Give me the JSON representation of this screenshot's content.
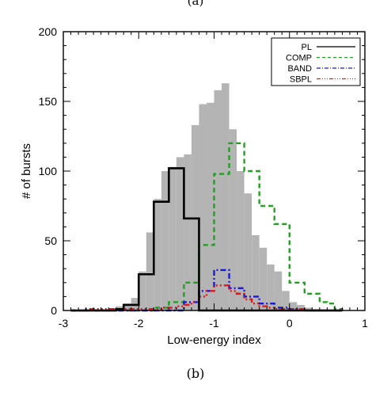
{
  "header": {
    "top_label": "(a)"
  },
  "caption": {
    "label": "(b)"
  },
  "chart_data": {
    "type": "histogram",
    "xlabel": "Low-energy index",
    "ylabel": "# of bursts",
    "xlim": [
      -3,
      1
    ],
    "ylim": [
      0,
      200
    ],
    "xticks": [
      "-3",
      "-2",
      "-1",
      "0",
      "1"
    ],
    "yticks": [
      "0",
      "50",
      "100",
      "150",
      "200"
    ],
    "legend_position": "top-right",
    "bin_edges": [
      -2.9,
      -2.8,
      -2.7,
      -2.6,
      -2.5,
      -2.4,
      -2.3,
      -2.2,
      -2.1,
      -2.0,
      -1.9,
      -1.8,
      -1.7,
      -1.6,
      -1.5,
      -1.4,
      -1.3,
      -1.2,
      -1.1,
      -1.0,
      -0.9,
      -0.8,
      -0.7,
      -0.6,
      -0.5,
      -0.4,
      -0.3,
      -0.2,
      -0.1,
      0.0,
      0.1,
      0.2,
      0.3,
      0.4,
      0.5,
      0.6,
      0.7
    ],
    "total": {
      "color": "#b4b4b4",
      "values": [
        0,
        0,
        0,
        0,
        0,
        1,
        3,
        5,
        9,
        28,
        56,
        80,
        100,
        103,
        110,
        112,
        133,
        148,
        149,
        158,
        163,
        130,
        100,
        84,
        54,
        45,
        33,
        28,
        14,
        6,
        4,
        2,
        1,
        0,
        0,
        0
      ]
    },
    "series": [
      {
        "name": "PL",
        "color": "#000000",
        "dash": "",
        "width": 2.6,
        "values": [
          0,
          0,
          0,
          0,
          0,
          0,
          1,
          4,
          4,
          26,
          26,
          78,
          78,
          102,
          102,
          66,
          66,
          0,
          0,
          0,
          0,
          0,
          0,
          0,
          0,
          0,
          0,
          0,
          0,
          0,
          0,
          0,
          0,
          0,
          0,
          0
        ]
      },
      {
        "name": "COMP",
        "color": "#22a022",
        "dash": "6,4",
        "width": 2.4,
        "values": [
          0,
          0,
          0,
          0,
          0,
          0,
          0,
          0,
          0,
          0,
          0,
          2,
          2,
          6,
          6,
          20,
          20,
          47,
          47,
          98,
          98,
          120,
          120,
          100,
          100,
          75,
          75,
          62,
          62,
          20,
          20,
          12,
          12,
          6,
          5,
          1
        ]
      },
      {
        "name": "BAND",
        "color": "#1a1ad6",
        "dash": "7,3,2,3",
        "width": 2.4,
        "values": [
          0,
          0,
          0,
          0,
          0,
          0,
          0,
          0,
          0,
          0,
          0,
          0,
          0,
          0,
          0,
          6,
          6,
          14,
          14,
          29,
          29,
          16,
          16,
          10,
          10,
          5,
          5,
          2,
          2,
          1,
          1,
          0,
          0,
          0,
          0,
          0
        ]
      },
      {
        "name": "SBPL",
        "color": "#e01a1a",
        "dash": "7,3,2,3,2,3,2,3",
        "width": 2.4,
        "values": [
          0,
          0,
          1,
          1,
          1,
          1,
          1,
          1,
          1,
          1,
          1,
          1,
          2,
          2,
          3,
          4,
          6,
          10,
          14,
          18,
          18,
          14,
          12,
          8,
          5,
          3,
          2,
          1,
          1,
          1,
          1,
          0,
          0,
          0,
          0,
          0
        ]
      }
    ]
  }
}
